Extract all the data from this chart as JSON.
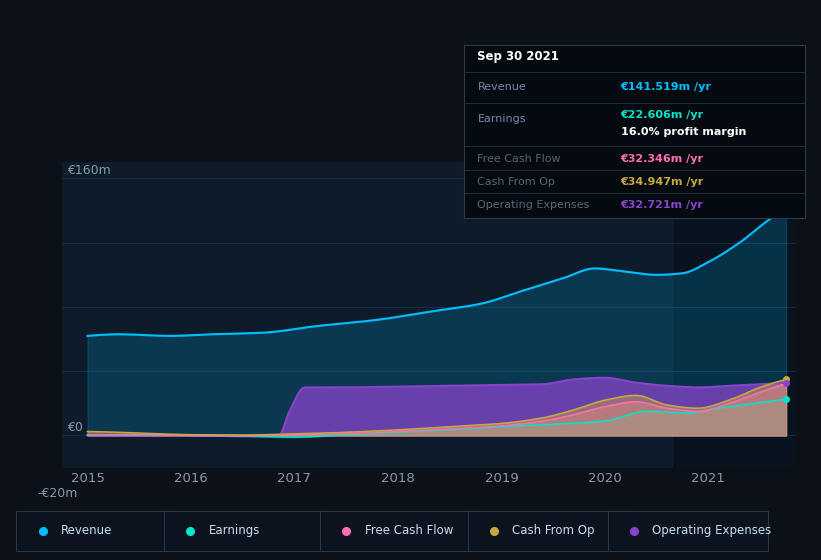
{
  "bg_color": "#0b1117",
  "plot_bg_color": "#0d1b2a",
  "grid_color": "#1a3050",
  "text_color": "#8899aa",
  "ylim": [
    -20,
    170
  ],
  "xlim": [
    2014.75,
    2021.85
  ],
  "xticks": [
    2015,
    2016,
    2017,
    2018,
    2019,
    2020,
    2021
  ],
  "highlight_x_start": 2020.67,
  "revenue_color": "#00bfff",
  "earnings_color": "#00e5cc",
  "fcf_color": "#ff6eb4",
  "cashop_color": "#c8a840",
  "opex_color": "#8844cc",
  "legend_items": [
    {
      "label": "Revenue",
      "color": "#00bfff"
    },
    {
      "label": "Earnings",
      "color": "#00e5cc"
    },
    {
      "label": "Free Cash Flow",
      "color": "#ff6eb4"
    },
    {
      "label": "Cash From Op",
      "color": "#c8a840"
    },
    {
      "label": "Operating Expenses",
      "color": "#8844cc"
    }
  ],
  "tooltip": {
    "date": "Sep 30 2021",
    "revenue_label": "Revenue",
    "revenue_val": "€141.519m /yr",
    "earnings_label": "Earnings",
    "earnings_val": "€22.606m /yr",
    "profit_margin": "16.0% profit margin",
    "fcf_label": "Free Cash Flow",
    "fcf_val": "€32.346m /yr",
    "cashop_label": "Cash From Op",
    "cashop_val": "€34.947m /yr",
    "opex_label": "Operating Expenses",
    "opex_val": "€32.721m /yr"
  }
}
